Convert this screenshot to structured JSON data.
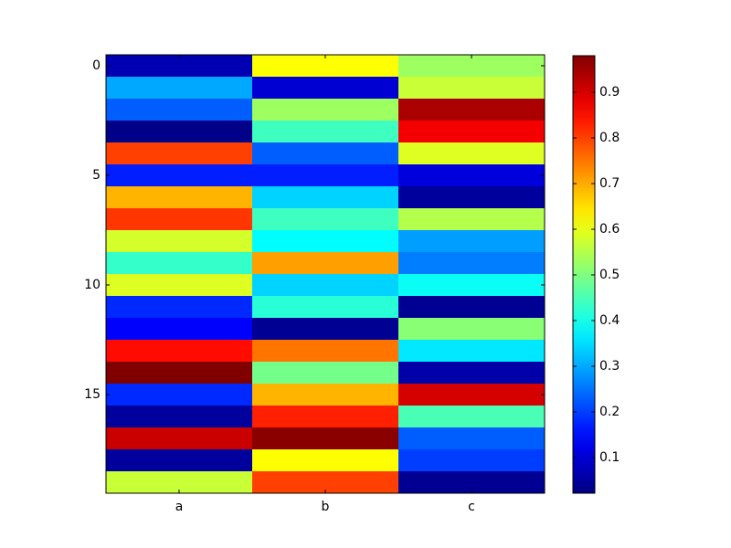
{
  "chart_data": {
    "type": "heatmap",
    "colormap": "jet",
    "categories": [
      "a",
      "b",
      "c"
    ],
    "values": [
      [
        0.07,
        0.62,
        0.53
      ],
      [
        0.3,
        0.1,
        0.57
      ],
      [
        0.23,
        0.53,
        0.94
      ],
      [
        0.03,
        0.44,
        0.87
      ],
      [
        0.8,
        0.23,
        0.59
      ],
      [
        0.17,
        0.17,
        0.11
      ],
      [
        0.69,
        0.34,
        0.05
      ],
      [
        0.81,
        0.44,
        0.55
      ],
      [
        0.58,
        0.38,
        0.29
      ],
      [
        0.43,
        0.71,
        0.26
      ],
      [
        0.59,
        0.34,
        0.39
      ],
      [
        0.18,
        0.42,
        0.04
      ],
      [
        0.14,
        0.04,
        0.51
      ],
      [
        0.85,
        0.75,
        0.36
      ],
      [
        0.98,
        0.49,
        0.06
      ],
      [
        0.18,
        0.69,
        0.9
      ],
      [
        0.05,
        0.83,
        0.45
      ],
      [
        0.91,
        0.97,
        0.23
      ],
      [
        0.05,
        0.62,
        0.2
      ],
      [
        0.57,
        0.8,
        0.04
      ]
    ],
    "ylim": [
      19.5,
      -0.5
    ],
    "yticks": [
      0,
      5,
      10,
      15
    ],
    "clim": [
      0.022,
      0.98
    ],
    "cticks": [
      0.1,
      0.2,
      0.3,
      0.4,
      0.5,
      0.6,
      0.7,
      0.8,
      0.9
    ]
  }
}
